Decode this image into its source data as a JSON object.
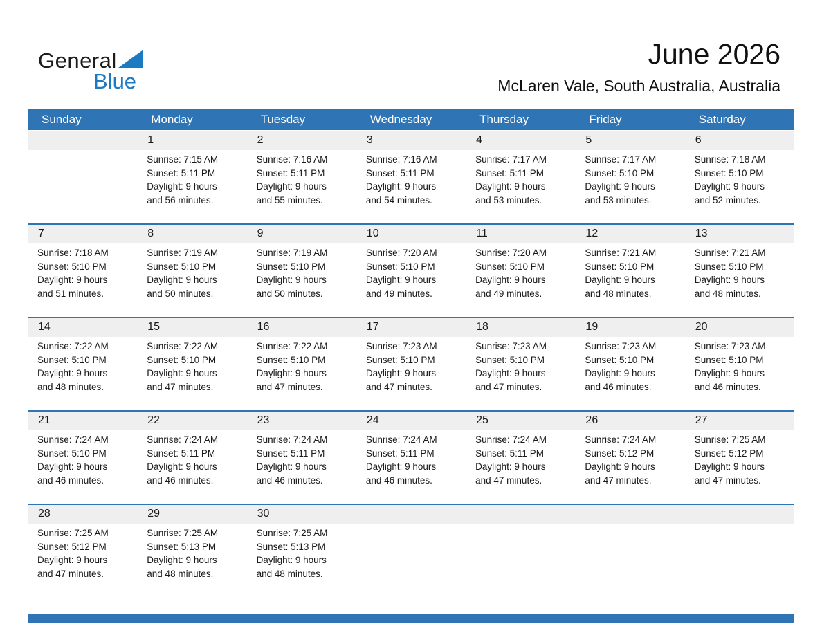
{
  "logo": {
    "general": "General",
    "blue": "Blue"
  },
  "header": {
    "month_title": "June 2026",
    "location": "McLaren Vale, South Australia, Australia"
  },
  "weekday_headers": [
    "Sunday",
    "Monday",
    "Tuesday",
    "Wednesday",
    "Thursday",
    "Friday",
    "Saturday"
  ],
  "weeks": [
    [
      null,
      1,
      2,
      3,
      4,
      5,
      6
    ],
    [
      7,
      8,
      9,
      10,
      11,
      12,
      13
    ],
    [
      14,
      15,
      16,
      17,
      18,
      19,
      20
    ],
    [
      21,
      22,
      23,
      24,
      25,
      26,
      27
    ],
    [
      28,
      29,
      30,
      null,
      null,
      null,
      null
    ]
  ],
  "days": [
    {
      "n": "1",
      "sunrise": "Sunrise: 7:15 AM",
      "sunset": "Sunset: 5:11 PM",
      "daylight1": "Daylight: 9 hours",
      "daylight2": "and 56 minutes."
    },
    {
      "n": "2",
      "sunrise": "Sunrise: 7:16 AM",
      "sunset": "Sunset: 5:11 PM",
      "daylight1": "Daylight: 9 hours",
      "daylight2": "and 55 minutes."
    },
    {
      "n": "3",
      "sunrise": "Sunrise: 7:16 AM",
      "sunset": "Sunset: 5:11 PM",
      "daylight1": "Daylight: 9 hours",
      "daylight2": "and 54 minutes."
    },
    {
      "n": "4",
      "sunrise": "Sunrise: 7:17 AM",
      "sunset": "Sunset: 5:11 PM",
      "daylight1": "Daylight: 9 hours",
      "daylight2": "and 53 minutes."
    },
    {
      "n": "5",
      "sunrise": "Sunrise: 7:17 AM",
      "sunset": "Sunset: 5:10 PM",
      "daylight1": "Daylight: 9 hours",
      "daylight2": "and 53 minutes."
    },
    {
      "n": "6",
      "sunrise": "Sunrise: 7:18 AM",
      "sunset": "Sunset: 5:10 PM",
      "daylight1": "Daylight: 9 hours",
      "daylight2": "and 52 minutes."
    },
    {
      "n": "7",
      "sunrise": "Sunrise: 7:18 AM",
      "sunset": "Sunset: 5:10 PM",
      "daylight1": "Daylight: 9 hours",
      "daylight2": "and 51 minutes."
    },
    {
      "n": "8",
      "sunrise": "Sunrise: 7:19 AM",
      "sunset": "Sunset: 5:10 PM",
      "daylight1": "Daylight: 9 hours",
      "daylight2": "and 50 minutes."
    },
    {
      "n": "9",
      "sunrise": "Sunrise: 7:19 AM",
      "sunset": "Sunset: 5:10 PM",
      "daylight1": "Daylight: 9 hours",
      "daylight2": "and 50 minutes."
    },
    {
      "n": "10",
      "sunrise": "Sunrise: 7:20 AM",
      "sunset": "Sunset: 5:10 PM",
      "daylight1": "Daylight: 9 hours",
      "daylight2": "and 49 minutes."
    },
    {
      "n": "11",
      "sunrise": "Sunrise: 7:20 AM",
      "sunset": "Sunset: 5:10 PM",
      "daylight1": "Daylight: 9 hours",
      "daylight2": "and 49 minutes."
    },
    {
      "n": "12",
      "sunrise": "Sunrise: 7:21 AM",
      "sunset": "Sunset: 5:10 PM",
      "daylight1": "Daylight: 9 hours",
      "daylight2": "and 48 minutes."
    },
    {
      "n": "13",
      "sunrise": "Sunrise: 7:21 AM",
      "sunset": "Sunset: 5:10 PM",
      "daylight1": "Daylight: 9 hours",
      "daylight2": "and 48 minutes."
    },
    {
      "n": "14",
      "sunrise": "Sunrise: 7:22 AM",
      "sunset": "Sunset: 5:10 PM",
      "daylight1": "Daylight: 9 hours",
      "daylight2": "and 48 minutes."
    },
    {
      "n": "15",
      "sunrise": "Sunrise: 7:22 AM",
      "sunset": "Sunset: 5:10 PM",
      "daylight1": "Daylight: 9 hours",
      "daylight2": "and 47 minutes."
    },
    {
      "n": "16",
      "sunrise": "Sunrise: 7:22 AM",
      "sunset": "Sunset: 5:10 PM",
      "daylight1": "Daylight: 9 hours",
      "daylight2": "and 47 minutes."
    },
    {
      "n": "17",
      "sunrise": "Sunrise: 7:23 AM",
      "sunset": "Sunset: 5:10 PM",
      "daylight1": "Daylight: 9 hours",
      "daylight2": "and 47 minutes."
    },
    {
      "n": "18",
      "sunrise": "Sunrise: 7:23 AM",
      "sunset": "Sunset: 5:10 PM",
      "daylight1": "Daylight: 9 hours",
      "daylight2": "and 47 minutes."
    },
    {
      "n": "19",
      "sunrise": "Sunrise: 7:23 AM",
      "sunset": "Sunset: 5:10 PM",
      "daylight1": "Daylight: 9 hours",
      "daylight2": "and 46 minutes."
    },
    {
      "n": "20",
      "sunrise": "Sunrise: 7:23 AM",
      "sunset": "Sunset: 5:10 PM",
      "daylight1": "Daylight: 9 hours",
      "daylight2": "and 46 minutes."
    },
    {
      "n": "21",
      "sunrise": "Sunrise: 7:24 AM",
      "sunset": "Sunset: 5:10 PM",
      "daylight1": "Daylight: 9 hours",
      "daylight2": "and 46 minutes."
    },
    {
      "n": "22",
      "sunrise": "Sunrise: 7:24 AM",
      "sunset": "Sunset: 5:11 PM",
      "daylight1": "Daylight: 9 hours",
      "daylight2": "and 46 minutes."
    },
    {
      "n": "23",
      "sunrise": "Sunrise: 7:24 AM",
      "sunset": "Sunset: 5:11 PM",
      "daylight1": "Daylight: 9 hours",
      "daylight2": "and 46 minutes."
    },
    {
      "n": "24",
      "sunrise": "Sunrise: 7:24 AM",
      "sunset": "Sunset: 5:11 PM",
      "daylight1": "Daylight: 9 hours",
      "daylight2": "and 46 minutes."
    },
    {
      "n": "25",
      "sunrise": "Sunrise: 7:24 AM",
      "sunset": "Sunset: 5:11 PM",
      "daylight1": "Daylight: 9 hours",
      "daylight2": "and 47 minutes."
    },
    {
      "n": "26",
      "sunrise": "Sunrise: 7:24 AM",
      "sunset": "Sunset: 5:12 PM",
      "daylight1": "Daylight: 9 hours",
      "daylight2": "and 47 minutes."
    },
    {
      "n": "27",
      "sunrise": "Sunrise: 7:25 AM",
      "sunset": "Sunset: 5:12 PM",
      "daylight1": "Daylight: 9 hours",
      "daylight2": "and 47 minutes."
    },
    {
      "n": "28",
      "sunrise": "Sunrise: 7:25 AM",
      "sunset": "Sunset: 5:12 PM",
      "daylight1": "Daylight: 9 hours",
      "daylight2": "and 47 minutes."
    },
    {
      "n": "29",
      "sunrise": "Sunrise: 7:25 AM",
      "sunset": "Sunset: 5:13 PM",
      "daylight1": "Daylight: 9 hours",
      "daylight2": "and 48 minutes."
    },
    {
      "n": "30",
      "sunrise": "Sunrise: 7:25 AM",
      "sunset": "Sunset: 5:13 PM",
      "daylight1": "Daylight: 9 hours",
      "daylight2": "and 48 minutes."
    }
  ],
  "colors": {
    "header_blue": "#2F74B5",
    "separator_blue": "#2F74B5",
    "strip_gray": "#EFEFEF",
    "logo_blue": "#1B7AC1"
  }
}
